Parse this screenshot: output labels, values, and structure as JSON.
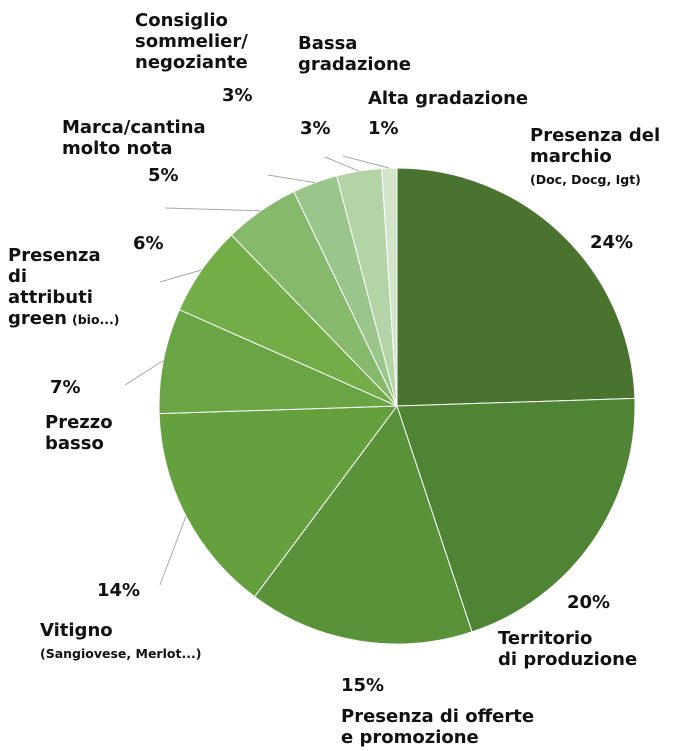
{
  "chart_data": {
    "type": "pie",
    "categories": [
      "Presenza del\nmarchio",
      "Territorio\ndi produzione",
      "Presenza di offerte\ne promozione",
      "Vitigno",
      "Prezzo\nbasso",
      "Presenza\ndi\nattributi\ngreen",
      "Marca/cantina\nmolto nota",
      "Consiglio\nsommelier/\nnegoziante",
      "Bassa\ngradazione",
      "Alta gradazione"
    ],
    "category_details": [
      "(Doc, Docg, Igt)",
      null,
      null,
      "(Sangiovese, Merlot...)",
      null,
      "(bio...)",
      null,
      null,
      null,
      null
    ],
    "values": [
      24,
      20,
      15,
      14,
      7,
      6,
      5,
      3,
      3,
      1
    ],
    "value_labels": [
      "24%",
      "20%",
      "15%",
      "14%",
      "7%",
      "6%",
      "5%",
      "3%",
      "3%",
      "1%"
    ],
    "colors": [
      "#4a732f",
      "#4f8434",
      "#5a9239",
      "#65a03f",
      "#6aa545",
      "#72ad48",
      "#87b96d",
      "#9bc68b",
      "#b4d4a8",
      "#d2e5ca"
    ]
  }
}
